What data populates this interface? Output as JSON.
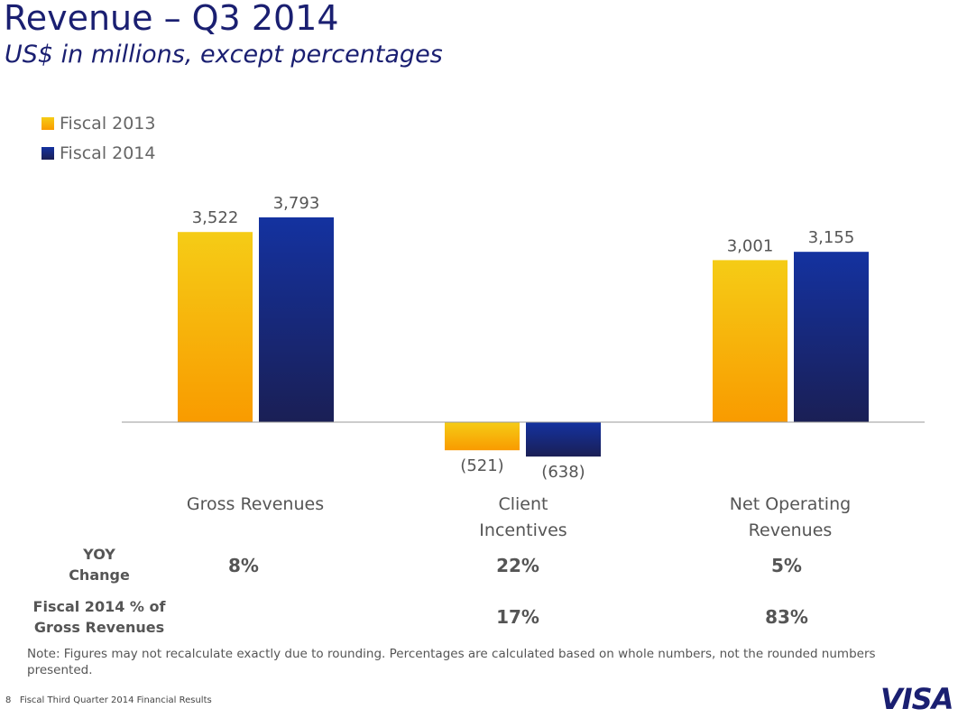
{
  "title": "Revenue – Q3 2014",
  "subtitle": "US$ in millions, except percentages",
  "colors": {
    "fiscal_2013": [
      "#f5cc16",
      "#f99b00"
    ],
    "fiscal_2014": [
      "#1432a0",
      "#1a1f55"
    ],
    "title": "#1a1f71"
  },
  "chart_data": {
    "type": "bar",
    "categories": [
      "Gross Revenues",
      "Client Incentives",
      "Net Operating Revenues"
    ],
    "series": [
      {
        "name": "Fiscal 2013",
        "values": [
          3522,
          -521,
          3001
        ],
        "labels": [
          "3,522",
          "(521)",
          "3,001"
        ]
      },
      {
        "name": "Fiscal 2014",
        "values": [
          3793,
          -638,
          3155
        ],
        "labels": [
          "3,793",
          "(638)",
          "3,155"
        ]
      }
    ],
    "legend": "top-left",
    "grid": false
  },
  "category_labels": [
    [
      "Gross Revenues"
    ],
    [
      "Client",
      "Incentives"
    ],
    [
      "Net Operating",
      "Revenues"
    ]
  ],
  "table": {
    "rows": [
      {
        "label": [
          "YOY",
          "Change"
        ],
        "values": [
          "8%",
          "22%",
          "5%"
        ]
      },
      {
        "label": [
          "Fiscal 2014 % of",
          "Gross Revenues"
        ],
        "values": [
          "",
          "17%",
          "83%"
        ]
      }
    ]
  },
  "note": "Note: Figures may not recalculate exactly due to rounding. Percentages are calculated based on whole numbers, not the rounded numbers presented.",
  "footer": {
    "page": "8",
    "text": "Fiscal Third Quarter 2014 Financial Results"
  },
  "logo": "VISA"
}
